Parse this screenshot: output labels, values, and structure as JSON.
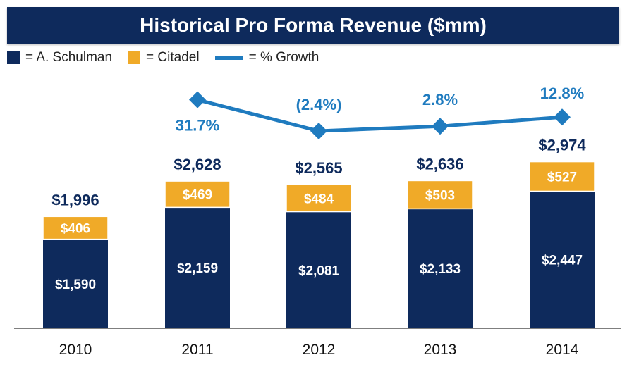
{
  "title": "Historical Pro Forma Revenue ($mm)",
  "legend": [
    {
      "label": "= A. Schulman",
      "kind": "box",
      "color": "#0e2a5c"
    },
    {
      "label": "= Citadel",
      "kind": "box",
      "color": "#f0aa28"
    },
    {
      "label": "= % Growth",
      "kind": "line",
      "color": "#1f7bbf"
    }
  ],
  "colors": {
    "schulman": "#0e2a5c",
    "citadel": "#f0aa28",
    "growth": "#1f7bbf",
    "axis": "#7f7f7f",
    "total": "#0e2a5c"
  },
  "chart_data": {
    "type": "bar",
    "stacked": true,
    "categories": [
      "2010",
      "2011",
      "2012",
      "2013",
      "2014"
    ],
    "series": [
      {
        "name": "A. Schulman",
        "values": [
          1590,
          2159,
          2081,
          2133,
          2447
        ],
        "labels": [
          "$1,590",
          "$2,159",
          "$2,081",
          "$2,133",
          "$2,447"
        ]
      },
      {
        "name": "Citadel",
        "values": [
          406,
          469,
          484,
          503,
          527
        ],
        "labels": [
          "$406",
          "$469",
          "$484",
          "$503",
          "$527"
        ]
      }
    ],
    "totals": {
      "values": [
        1996,
        2628,
        2565,
        2636,
        2974
      ],
      "labels": [
        "$1,996",
        "$2,628",
        "$2,565",
        "$2,636",
        "$2,974"
      ]
    },
    "growth": {
      "name": "% Growth",
      "categories": [
        "2011",
        "2012",
        "2013",
        "2014"
      ],
      "values": [
        31.7,
        -2.4,
        2.8,
        12.8
      ],
      "labels": [
        "31.7%",
        "(2.4%)",
        "2.8%",
        "12.8%"
      ]
    },
    "ylim": [
      0,
      3100
    ],
    "legend_position": "top-left",
    "grid": false
  }
}
